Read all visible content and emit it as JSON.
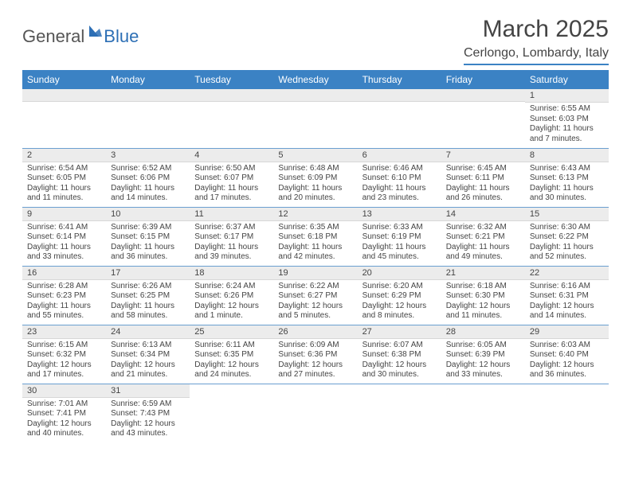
{
  "logo": {
    "text_general": "General",
    "text_blue": "Blue",
    "triangle_color": "#2d6fb5"
  },
  "title": {
    "month_year": "March 2025",
    "location": "Cerlongo, Lombardy, Italy"
  },
  "colors": {
    "header_bg": "#3b82c4",
    "header_text": "#ffffff",
    "day_header_bg": "#ececec",
    "row_border": "#6a9fd0",
    "text": "#444444"
  },
  "weekdays": [
    "Sunday",
    "Monday",
    "Tuesday",
    "Wednesday",
    "Thursday",
    "Friday",
    "Saturday"
  ],
  "weeks": [
    [
      null,
      null,
      null,
      null,
      null,
      null,
      {
        "n": "1",
        "sr": "Sunrise: 6:55 AM",
        "ss": "Sunset: 6:03 PM",
        "dl": "Daylight: 11 hours and 7 minutes."
      }
    ],
    [
      {
        "n": "2",
        "sr": "Sunrise: 6:54 AM",
        "ss": "Sunset: 6:05 PM",
        "dl": "Daylight: 11 hours and 11 minutes."
      },
      {
        "n": "3",
        "sr": "Sunrise: 6:52 AM",
        "ss": "Sunset: 6:06 PM",
        "dl": "Daylight: 11 hours and 14 minutes."
      },
      {
        "n": "4",
        "sr": "Sunrise: 6:50 AM",
        "ss": "Sunset: 6:07 PM",
        "dl": "Daylight: 11 hours and 17 minutes."
      },
      {
        "n": "5",
        "sr": "Sunrise: 6:48 AM",
        "ss": "Sunset: 6:09 PM",
        "dl": "Daylight: 11 hours and 20 minutes."
      },
      {
        "n": "6",
        "sr": "Sunrise: 6:46 AM",
        "ss": "Sunset: 6:10 PM",
        "dl": "Daylight: 11 hours and 23 minutes."
      },
      {
        "n": "7",
        "sr": "Sunrise: 6:45 AM",
        "ss": "Sunset: 6:11 PM",
        "dl": "Daylight: 11 hours and 26 minutes."
      },
      {
        "n": "8",
        "sr": "Sunrise: 6:43 AM",
        "ss": "Sunset: 6:13 PM",
        "dl": "Daylight: 11 hours and 30 minutes."
      }
    ],
    [
      {
        "n": "9",
        "sr": "Sunrise: 6:41 AM",
        "ss": "Sunset: 6:14 PM",
        "dl": "Daylight: 11 hours and 33 minutes."
      },
      {
        "n": "10",
        "sr": "Sunrise: 6:39 AM",
        "ss": "Sunset: 6:15 PM",
        "dl": "Daylight: 11 hours and 36 minutes."
      },
      {
        "n": "11",
        "sr": "Sunrise: 6:37 AM",
        "ss": "Sunset: 6:17 PM",
        "dl": "Daylight: 11 hours and 39 minutes."
      },
      {
        "n": "12",
        "sr": "Sunrise: 6:35 AM",
        "ss": "Sunset: 6:18 PM",
        "dl": "Daylight: 11 hours and 42 minutes."
      },
      {
        "n": "13",
        "sr": "Sunrise: 6:33 AM",
        "ss": "Sunset: 6:19 PM",
        "dl": "Daylight: 11 hours and 45 minutes."
      },
      {
        "n": "14",
        "sr": "Sunrise: 6:32 AM",
        "ss": "Sunset: 6:21 PM",
        "dl": "Daylight: 11 hours and 49 minutes."
      },
      {
        "n": "15",
        "sr": "Sunrise: 6:30 AM",
        "ss": "Sunset: 6:22 PM",
        "dl": "Daylight: 11 hours and 52 minutes."
      }
    ],
    [
      {
        "n": "16",
        "sr": "Sunrise: 6:28 AM",
        "ss": "Sunset: 6:23 PM",
        "dl": "Daylight: 11 hours and 55 minutes."
      },
      {
        "n": "17",
        "sr": "Sunrise: 6:26 AM",
        "ss": "Sunset: 6:25 PM",
        "dl": "Daylight: 11 hours and 58 minutes."
      },
      {
        "n": "18",
        "sr": "Sunrise: 6:24 AM",
        "ss": "Sunset: 6:26 PM",
        "dl": "Daylight: 12 hours and 1 minute."
      },
      {
        "n": "19",
        "sr": "Sunrise: 6:22 AM",
        "ss": "Sunset: 6:27 PM",
        "dl": "Daylight: 12 hours and 5 minutes."
      },
      {
        "n": "20",
        "sr": "Sunrise: 6:20 AM",
        "ss": "Sunset: 6:29 PM",
        "dl": "Daylight: 12 hours and 8 minutes."
      },
      {
        "n": "21",
        "sr": "Sunrise: 6:18 AM",
        "ss": "Sunset: 6:30 PM",
        "dl": "Daylight: 12 hours and 11 minutes."
      },
      {
        "n": "22",
        "sr": "Sunrise: 6:16 AM",
        "ss": "Sunset: 6:31 PM",
        "dl": "Daylight: 12 hours and 14 minutes."
      }
    ],
    [
      {
        "n": "23",
        "sr": "Sunrise: 6:15 AM",
        "ss": "Sunset: 6:32 PM",
        "dl": "Daylight: 12 hours and 17 minutes."
      },
      {
        "n": "24",
        "sr": "Sunrise: 6:13 AM",
        "ss": "Sunset: 6:34 PM",
        "dl": "Daylight: 12 hours and 21 minutes."
      },
      {
        "n": "25",
        "sr": "Sunrise: 6:11 AM",
        "ss": "Sunset: 6:35 PM",
        "dl": "Daylight: 12 hours and 24 minutes."
      },
      {
        "n": "26",
        "sr": "Sunrise: 6:09 AM",
        "ss": "Sunset: 6:36 PM",
        "dl": "Daylight: 12 hours and 27 minutes."
      },
      {
        "n": "27",
        "sr": "Sunrise: 6:07 AM",
        "ss": "Sunset: 6:38 PM",
        "dl": "Daylight: 12 hours and 30 minutes."
      },
      {
        "n": "28",
        "sr": "Sunrise: 6:05 AM",
        "ss": "Sunset: 6:39 PM",
        "dl": "Daylight: 12 hours and 33 minutes."
      },
      {
        "n": "29",
        "sr": "Sunrise: 6:03 AM",
        "ss": "Sunset: 6:40 PM",
        "dl": "Daylight: 12 hours and 36 minutes."
      }
    ],
    [
      {
        "n": "30",
        "sr": "Sunrise: 7:01 AM",
        "ss": "Sunset: 7:41 PM",
        "dl": "Daylight: 12 hours and 40 minutes."
      },
      {
        "n": "31",
        "sr": "Sunrise: 6:59 AM",
        "ss": "Sunset: 7:43 PM",
        "dl": "Daylight: 12 hours and 43 minutes."
      },
      null,
      null,
      null,
      null,
      null
    ]
  ]
}
